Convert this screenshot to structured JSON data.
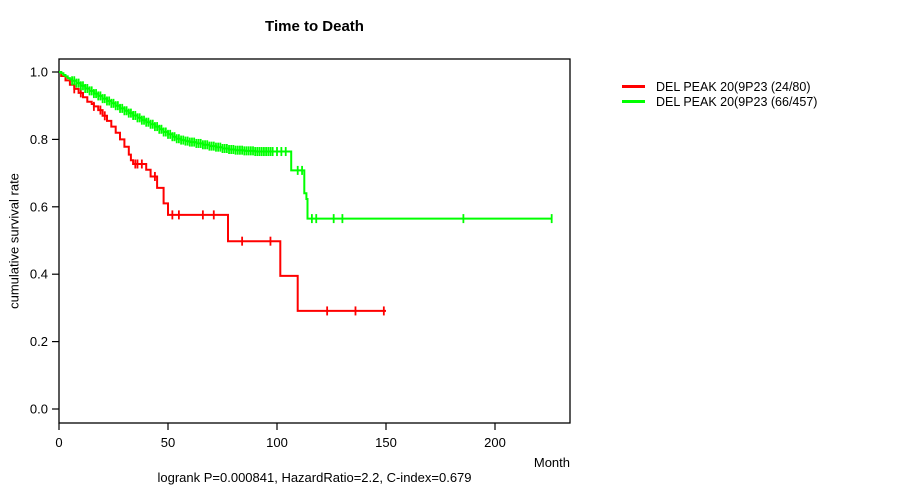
{
  "chart_data": {
    "type": "line",
    "variant": "kaplan-meier-step-curves",
    "title": "Time to Death",
    "xlabel": "Month",
    "ylabel": "cumulative survival rate",
    "footer": "logrank P=0.000841, HazardRatio=2.2, C-index=0.679",
    "xlim": [
      0,
      234
    ],
    "ylim": [
      0,
      1.04
    ],
    "xticks": [
      0,
      50,
      100,
      150,
      200
    ],
    "yticks": [
      "0.0",
      "0.2",
      "0.4",
      "0.6",
      "0.8",
      "1.0"
    ],
    "grid": false,
    "legend_position": "top-right-outside",
    "axis_color": "#000000",
    "series": [
      {
        "name": "DEL PEAK 20(9P23 (24/80)",
        "color": "#ff0000",
        "steps": [
          [
            0,
            1.0
          ],
          [
            1,
            0.988
          ],
          [
            3,
            0.975
          ],
          [
            5,
            0.962
          ],
          [
            7,
            0.95
          ],
          [
            9,
            0.938
          ],
          [
            11,
            0.925
          ],
          [
            13,
            0.912
          ],
          [
            15,
            0.905
          ],
          [
            16,
            0.898
          ],
          [
            18,
            0.887
          ],
          [
            20,
            0.87
          ],
          [
            22,
            0.855
          ],
          [
            24,
            0.838
          ],
          [
            26,
            0.82
          ],
          [
            28,
            0.8
          ],
          [
            30,
            0.778
          ],
          [
            32,
            0.755
          ],
          [
            33,
            0.738
          ],
          [
            34,
            0.727
          ],
          [
            40,
            0.71
          ],
          [
            42,
            0.69
          ],
          [
            45,
            0.656
          ],
          [
            48,
            0.61
          ],
          [
            50,
            0.576
          ],
          [
            77.5,
            0.498
          ],
          [
            101.5,
            0.395
          ],
          [
            109.5,
            0.291
          ]
        ],
        "censors": [
          7,
          10,
          16,
          19,
          21,
          35,
          36,
          38,
          44,
          52,
          55,
          66,
          71,
          84,
          97,
          123,
          136,
          149
        ],
        "end_time": 150
      },
      {
        "name": "DEL PEAK 20(9P23 (66/457)",
        "color": "#00ff00",
        "steps": [
          [
            0,
            1.0
          ],
          [
            1,
            0.996
          ],
          [
            2,
            0.991
          ],
          [
            3,
            0.987
          ],
          [
            4,
            0.982
          ],
          [
            5,
            0.978
          ],
          [
            6,
            0.974
          ],
          [
            8,
            0.967
          ],
          [
            10,
            0.959
          ],
          [
            12,
            0.951
          ],
          [
            14,
            0.944
          ],
          [
            16,
            0.936
          ],
          [
            18,
            0.929
          ],
          [
            20,
            0.921
          ],
          [
            22,
            0.914
          ],
          [
            24,
            0.907
          ],
          [
            26,
            0.9
          ],
          [
            28,
            0.892
          ],
          [
            30,
            0.885
          ],
          [
            32,
            0.878
          ],
          [
            34,
            0.871
          ],
          [
            36,
            0.864
          ],
          [
            38,
            0.857
          ],
          [
            40,
            0.851
          ],
          [
            42,
            0.845
          ],
          [
            44,
            0.838
          ],
          [
            46,
            0.83
          ],
          [
            48,
            0.822
          ],
          [
            50,
            0.815
          ],
          [
            52,
            0.808
          ],
          [
            54,
            0.802
          ],
          [
            56,
            0.798
          ],
          [
            58,
            0.795
          ],
          [
            60,
            0.792
          ],
          [
            63,
            0.788
          ],
          [
            66,
            0.784
          ],
          [
            69,
            0.78
          ],
          [
            72,
            0.777
          ],
          [
            75,
            0.773
          ],
          [
            78,
            0.77
          ],
          [
            81,
            0.768
          ],
          [
            85,
            0.766
          ],
          [
            90,
            0.764
          ],
          [
            106.5,
            0.708
          ],
          [
            112.5,
            0.64
          ],
          [
            113.5,
            0.623
          ],
          [
            114,
            0.565
          ]
        ],
        "censors": [
          6,
          7,
          8,
          9,
          10,
          11,
          12,
          13,
          14,
          15,
          16,
          17,
          18,
          19,
          20,
          21,
          22,
          23,
          24,
          25,
          26,
          27,
          28,
          29,
          30,
          31,
          32,
          33,
          34,
          35,
          36,
          37,
          38,
          39,
          40,
          41,
          42,
          43,
          44,
          45,
          46,
          47,
          48,
          49,
          50,
          51,
          52,
          53,
          54,
          55,
          56,
          57,
          58,
          59,
          60,
          61,
          62,
          63,
          64,
          65,
          66,
          67,
          68,
          69,
          70,
          71,
          72,
          73,
          74,
          75,
          76,
          77,
          78,
          79,
          80,
          81,
          82,
          83,
          84,
          85,
          86,
          87,
          88,
          89,
          90,
          91,
          92,
          93,
          94,
          95,
          96,
          97,
          98,
          100,
          102,
          104,
          109.5,
          111.5,
          116,
          118,
          126,
          130,
          185.5,
          226
        ],
        "end_time": 226
      }
    ]
  }
}
